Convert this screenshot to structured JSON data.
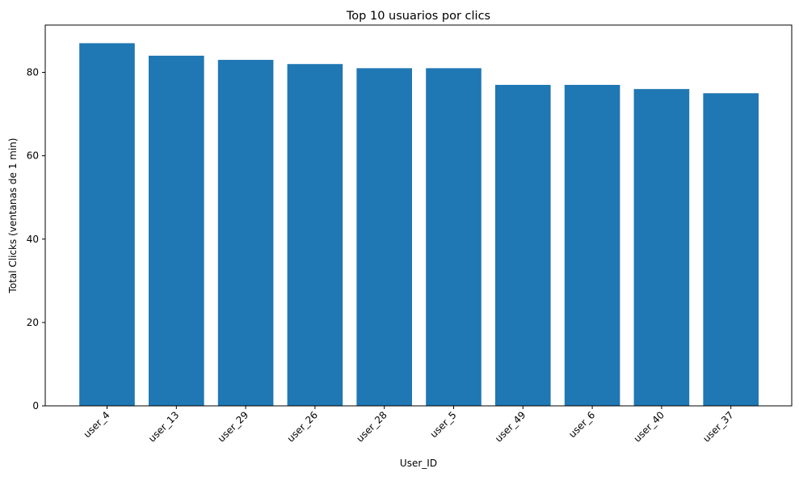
{
  "chart_data": {
    "type": "bar",
    "title": "Top 10 usuarios por clics",
    "xlabel": "User_ID",
    "ylabel": "Total Clicks (ventanas de 1 min)",
    "categories": [
      "user_4",
      "user_13",
      "user_29",
      "user_26",
      "user_28",
      "user_5",
      "user_49",
      "user_6",
      "user_40",
      "user_37"
    ],
    "values": [
      87,
      84,
      83,
      82,
      81,
      81,
      77,
      77,
      76,
      75
    ],
    "ylim": [
      0,
      91.35
    ],
    "yticks": [
      0,
      20,
      40,
      60,
      80
    ],
    "bar_color": "#1f77b4",
    "grid": false,
    "legend": "none"
  }
}
